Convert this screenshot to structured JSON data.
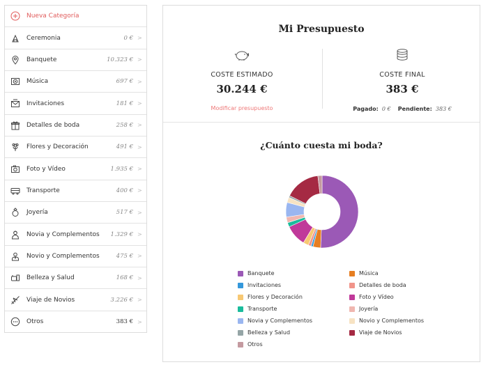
{
  "sidebar": {
    "new_category": "Nueva Categoría",
    "items": [
      {
        "label": "Ceremonia",
        "amount": "0 €",
        "icon": "hanger-icon"
      },
      {
        "label": "Banquete",
        "amount": "10.323 €",
        "icon": "location-pin-icon"
      },
      {
        "label": "Música",
        "amount": "697 €",
        "icon": "speaker-icon"
      },
      {
        "label": "Invitaciones",
        "amount": "181 €",
        "icon": "envelope-icon"
      },
      {
        "label": "Detalles de boda",
        "amount": "258 €",
        "icon": "gift-icon"
      },
      {
        "label": "Flores y Decoración",
        "amount": "491 €",
        "icon": "flower-icon"
      },
      {
        "label": "Foto y Vídeo",
        "amount": "1.935 €",
        "icon": "camera-icon"
      },
      {
        "label": "Transporte",
        "amount": "400 €",
        "icon": "bus-icon"
      },
      {
        "label": "Joyería",
        "amount": "517 €",
        "icon": "ring-icon"
      },
      {
        "label": "Novia y Complementos",
        "amount": "1.329 €",
        "icon": "bride-icon"
      },
      {
        "label": "Novio y Complementos",
        "amount": "475 €",
        "icon": "groom-icon"
      },
      {
        "label": "Belleza y Salud",
        "amount": "168 €",
        "icon": "beauty-icon"
      },
      {
        "label": "Viaje de Novios",
        "amount": "3.226 €",
        "icon": "plane-icon"
      },
      {
        "label": "Otros",
        "amount": "383 €",
        "icon": "dots-icon"
      }
    ]
  },
  "main": {
    "title": "Mi Presupuesto",
    "estimated": {
      "label": "COSTE ESTIMADO",
      "value": "30.244 €",
      "link": "Modificar presupuesto"
    },
    "final": {
      "label": "COSTE FINAL",
      "value": "383 €",
      "paid_label": "Pagado:",
      "paid_value": "0 €",
      "pending_label": "Pendiente:",
      "pending_value": "383 €"
    },
    "chart_title": "¿Cuánto cuesta mi boda?"
  },
  "colors": {
    "accent": "#e05a5a",
    "banquete": "#9b59b6",
    "musica": "#e67e22",
    "invitaciones": "#3498db",
    "detalles": "#f1948a",
    "flores": "#f7c873",
    "foto": "#c0399a",
    "transporte": "#1abc9c",
    "joyeria": "#f0b7b0",
    "novia": "#9ab6f0",
    "novio": "#f7e3c3",
    "belleza": "#95a5a6",
    "viaje": "#a52a43",
    "otros": "#c49aa0"
  },
  "chart_data": {
    "type": "pie",
    "donut": true,
    "categories": [
      "Banquete",
      "Música",
      "Invitaciones",
      "Detalles de boda",
      "Flores y Decoración",
      "Foto y Vídeo",
      "Transporte",
      "Joyería",
      "Novia y Complementos",
      "Novio y Complementos",
      "Belleza y Salud",
      "Viaje de Novios",
      "Otros"
    ],
    "values": [
      10323,
      697,
      181,
      258,
      491,
      1935,
      400,
      517,
      1329,
      475,
      168,
      3226,
      383
    ],
    "colors": [
      "#9b59b6",
      "#e67e22",
      "#3498db",
      "#f1948a",
      "#f7c873",
      "#c0399a",
      "#1abc9c",
      "#f0b7b0",
      "#9ab6f0",
      "#f7e3c3",
      "#95a5a6",
      "#a52a43",
      "#c49aa0"
    ],
    "title": "¿Cuánto cuesta mi boda?",
    "legend": "bottom"
  }
}
